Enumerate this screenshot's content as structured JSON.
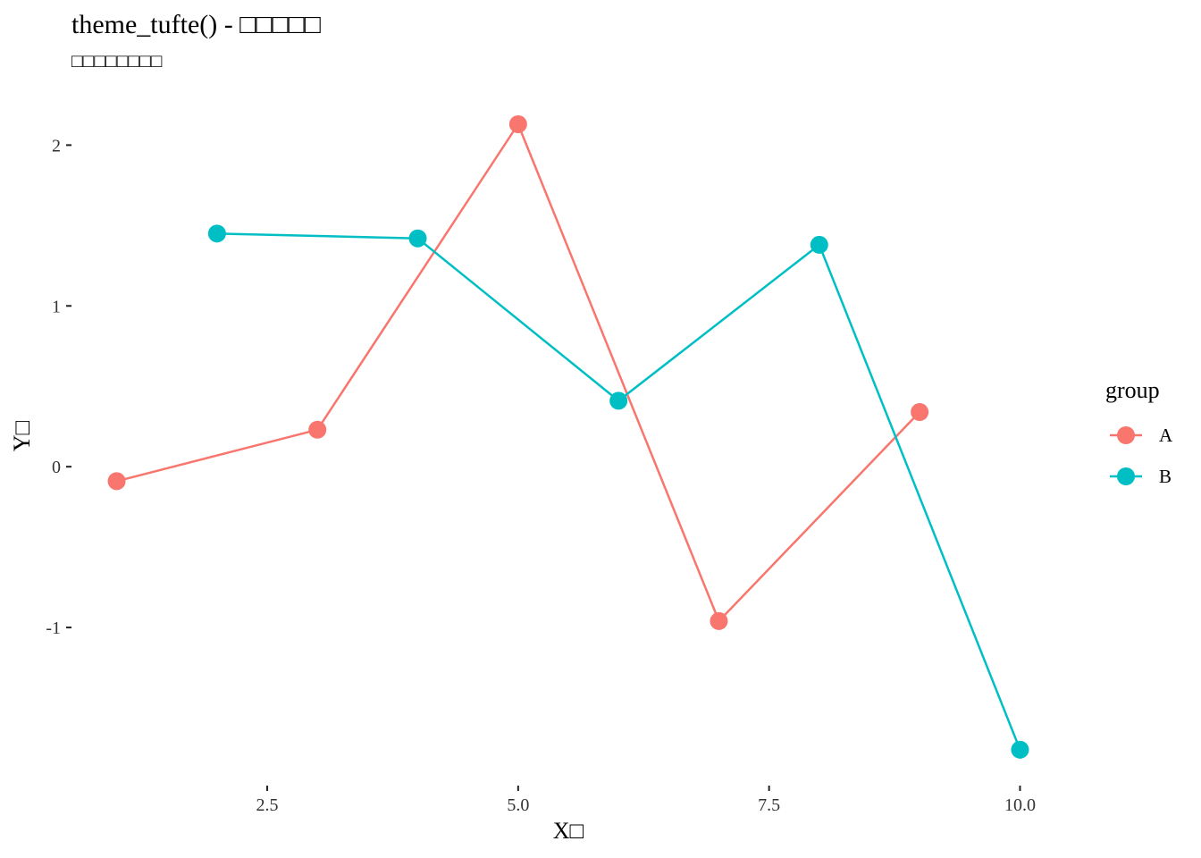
{
  "chart_data": {
    "type": "line",
    "title": "theme_tufte() - □□□□□",
    "subtitle": "□□□□□□□□",
    "xlabel": "X□",
    "ylabel": "Y□",
    "xlim": [
      0.55,
      10.45
    ],
    "ylim": [
      -1.9,
      2.28
    ],
    "x_ticks": [
      2.5,
      5.0,
      7.5,
      10.0
    ],
    "x_tick_labels": [
      "2.5",
      "5.0",
      "7.5",
      "10.0"
    ],
    "y_ticks": [
      -1,
      0,
      1,
      2
    ],
    "y_tick_labels": [
      "-1",
      "0",
      "1",
      "2"
    ],
    "grid": false,
    "legend": {
      "title": "group",
      "position": "right"
    },
    "series": [
      {
        "name": "A",
        "color": "#F8766D",
        "x": [
          1,
          3,
          5,
          7,
          9
        ],
        "y": [
          -0.09,
          0.23,
          2.13,
          -0.96,
          0.34
        ]
      },
      {
        "name": "B",
        "color": "#00BFC4",
        "x": [
          2,
          4,
          6,
          8,
          10
        ],
        "y": [
          1.45,
          1.42,
          0.41,
          1.38,
          -1.76
        ]
      }
    ]
  }
}
